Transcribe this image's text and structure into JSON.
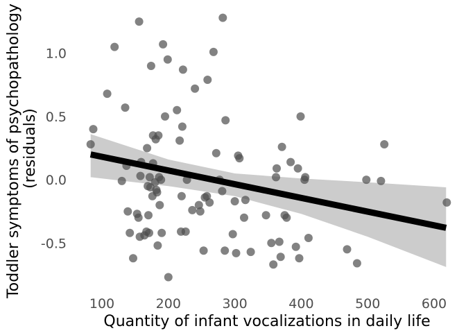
{
  "chart_data": {
    "type": "scatter",
    "title": "",
    "xlabel": "Quantity of infant vocalizations in daily life",
    "ylabel_lines": [
      "Toddler symptoms of psychopathology",
      "(residuals)"
    ],
    "xlim": [
      75,
      625
    ],
    "ylim": [
      -0.8,
      1.3
    ],
    "x_ticks": [
      100,
      200,
      300,
      400,
      500,
      600
    ],
    "x_tick_labels": [
      "100",
      "200",
      "300",
      "400",
      "500",
      "600"
    ],
    "y_ticks": [
      -0.5,
      0.0,
      0.5,
      1.0
    ],
    "y_tick_labels": [
      "-0.5",
      "0.0",
      "0.5",
      "1.0"
    ],
    "grid": false,
    "legend": "none",
    "colors": {
      "points": "#4d4d4d",
      "fit_line": "#000000",
      "ci_band": "#cccccc"
    },
    "fit_line": {
      "x": [
        83,
        618
      ],
      "y": [
        0.2,
        -0.38
      ]
    },
    "confidence_band": {
      "x": [
        83,
        200,
        300,
        400,
        500,
        618
      ],
      "lower": [
        0.02,
        -0.05,
        -0.13,
        -0.27,
        -0.45,
        -0.69
      ],
      "upper": [
        0.36,
        0.16,
        0.05,
        0.01,
        -0.02,
        -0.06
      ]
    },
    "points": [
      {
        "x": 83,
        "y": 0.28
      },
      {
        "x": 87,
        "y": 0.4
      },
      {
        "x": 108,
        "y": 0.68
      },
      {
        "x": 119,
        "y": 1.05
      },
      {
        "x": 130,
        "y": -0.01
      },
      {
        "x": 135,
        "y": 0.57
      },
      {
        "x": 137,
        "y": 0.11
      },
      {
        "x": 139,
        "y": -0.25
      },
      {
        "x": 142,
        "y": -0.42
      },
      {
        "x": 147,
        "y": -0.62
      },
      {
        "x": 153,
        "y": -0.27
      },
      {
        "x": 155,
        "y": -0.3
      },
      {
        "x": 156,
        "y": 1.25
      },
      {
        "x": 157,
        "y": -0.45
      },
      {
        "x": 158,
        "y": 0.03
      },
      {
        "x": 159,
        "y": 0.14
      },
      {
        "x": 164,
        "y": -0.44
      },
      {
        "x": 167,
        "y": -0.41
      },
      {
        "x": 168,
        "y": 0.25
      },
      {
        "x": 169,
        "y": -0.05
      },
      {
        "x": 170,
        "y": -0.28
      },
      {
        "x": 171,
        "y": -0.42
      },
      {
        "x": 172,
        "y": 0.02
      },
      {
        "x": 173,
        "y": -0.06
      },
      {
        "x": 174,
        "y": 0.9
      },
      {
        "x": 176,
        "y": -0.13
      },
      {
        "x": 177,
        "y": 0.35
      },
      {
        "x": 177,
        "y": 0.13
      },
      {
        "x": 180,
        "y": -0.02
      },
      {
        "x": 181,
        "y": 0.32
      },
      {
        "x": 182,
        "y": -0.08
      },
      {
        "x": 183,
        "y": -0.1
      },
      {
        "x": 184,
        "y": -0.52
      },
      {
        "x": 185,
        "y": 0.35
      },
      {
        "x": 186,
        "y": 0.02
      },
      {
        "x": 187,
        "y": -0.2
      },
      {
        "x": 189,
        "y": 0.0
      },
      {
        "x": 190,
        "y": -0.42
      },
      {
        "x": 192,
        "y": 1.07
      },
      {
        "x": 195,
        "y": 0.5
      },
      {
        "x": 199,
        "y": 0.95
      },
      {
        "x": 200,
        "y": -0.77
      },
      {
        "x": 213,
        "y": 0.55
      },
      {
        "x": 217,
        "y": 0.31
      },
      {
        "x": 219,
        "y": -0.41
      },
      {
        "x": 220,
        "y": -0.13
      },
      {
        "x": 221,
        "y": 0.42
      },
      {
        "x": 222,
        "y": 0.87
      },
      {
        "x": 226,
        "y": -0.41
      },
      {
        "x": 228,
        "y": 0.0
      },
      {
        "x": 236,
        "y": -0.24
      },
      {
        "x": 240,
        "y": 0.72
      },
      {
        "x": 246,
        "y": -0.2
      },
      {
        "x": 248,
        "y": -0.25
      },
      {
        "x": 253,
        "y": -0.56
      },
      {
        "x": 255,
        "y": -0.14
      },
      {
        "x": 258,
        "y": -0.13
      },
      {
        "x": 259,
        "y": 0.79
      },
      {
        "x": 262,
        "y": -0.18
      },
      {
        "x": 268,
        "y": 1.01
      },
      {
        "x": 272,
        "y": 0.21
      },
      {
        "x": 277,
        "y": 0.0
      },
      {
        "x": 281,
        "y": -0.09
      },
      {
        "x": 282,
        "y": 1.28
      },
      {
        "x": 285,
        "y": -0.56
      },
      {
        "x": 286,
        "y": 0.47
      },
      {
        "x": 297,
        "y": -0.43
      },
      {
        "x": 300,
        "y": -0.17
      },
      {
        "x": 302,
        "y": -0.58
      },
      {
        "x": 305,
        "y": 0.19
      },
      {
        "x": 307,
        "y": 0.17
      },
      {
        "x": 314,
        "y": -0.3
      },
      {
        "x": 316,
        "y": -0.16
      },
      {
        "x": 324,
        "y": -0.57
      },
      {
        "x": 347,
        "y": -0.28
      },
      {
        "x": 355,
        "y": -0.5
      },
      {
        "x": 358,
        "y": -0.67
      },
      {
        "x": 362,
        "y": 0.02
      },
      {
        "x": 363,
        "y": 0.09
      },
      {
        "x": 367,
        "y": -0.49
      },
      {
        "x": 369,
        "y": -0.61
      },
      {
        "x": 371,
        "y": 0.26
      },
      {
        "x": 375,
        "y": -0.28
      },
      {
        "x": 378,
        "y": -0.3
      },
      {
        "x": 384,
        "y": 0.14
      },
      {
        "x": 392,
        "y": -0.53
      },
      {
        "x": 395,
        "y": 0.09
      },
      {
        "x": 397,
        "y": -0.62
      },
      {
        "x": 399,
        "y": 0.5
      },
      {
        "x": 405,
        "y": 0.0
      },
      {
        "x": 406,
        "y": 0.02
      },
      {
        "x": 411,
        "y": -0.46
      },
      {
        "x": 469,
        "y": -0.55
      },
      {
        "x": 484,
        "y": -0.66
      },
      {
        "x": 498,
        "y": 0.0
      },
      {
        "x": 520,
        "y": -0.01
      },
      {
        "x": 525,
        "y": 0.28
      },
      {
        "x": 619,
        "y": -0.18
      }
    ]
  }
}
